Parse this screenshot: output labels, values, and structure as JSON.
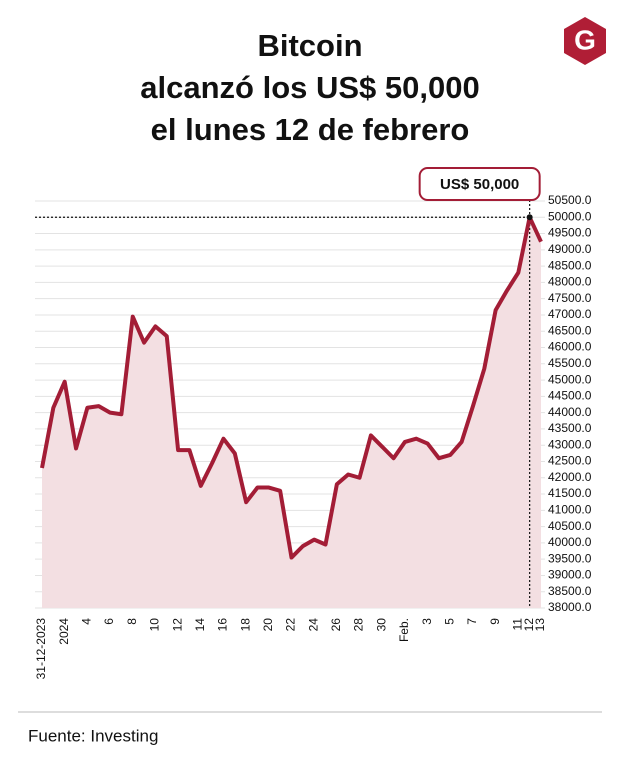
{
  "logo": "G",
  "chart_data": {
    "type": "line",
    "title": [
      "Bitcoin",
      "alcanzó los US$ 50,000",
      "el lunes 12 de febrero"
    ],
    "categories": [
      "31-12-2023",
      null,
      "2024",
      null,
      "4",
      null,
      "6",
      null,
      "8",
      null,
      "10",
      null,
      "12",
      null,
      "14",
      null,
      "16",
      null,
      "18",
      null,
      "20",
      null,
      "22",
      null,
      "24",
      null,
      "26",
      null,
      "28",
      null,
      "30",
      null,
      "Feb.",
      null,
      "3",
      null,
      "5",
      null,
      "7",
      null,
      "9",
      null,
      "11",
      "12",
      "13"
    ],
    "series": [
      {
        "name": "Bitcoin",
        "color": "#a31d36",
        "area_color": "#f3dfe2",
        "values": [
          42300,
          44150,
          44950,
          42900,
          44150,
          44200,
          44000,
          43950,
          46950,
          46150,
          46650,
          46350,
          42850,
          42850,
          41750,
          42450,
          43200,
          42750,
          41250,
          41700,
          41700,
          41600,
          39550,
          39900,
          40100,
          39950,
          41800,
          42100,
          42000,
          43300,
          42950,
          42600,
          43100,
          43200,
          43050,
          42600,
          42700,
          43100,
          44200,
          45350,
          47150,
          47750,
          48300,
          50000,
          49250
        ]
      }
    ],
    "ylim": [
      38000,
      50500
    ],
    "yticks": [
      {
        "value": 38000,
        "label": "38000.0"
      },
      {
        "value": 38500,
        "label": "38500.0"
      },
      {
        "value": 39000,
        "label": "39000.0"
      },
      {
        "value": 39500,
        "label": "39500.0"
      },
      {
        "value": 40000,
        "label": "40000.0"
      },
      {
        "value": 40500,
        "label": "40500.0"
      },
      {
        "value": 41000,
        "label": "41000.0"
      },
      {
        "value": 41500,
        "label": "41500.0"
      },
      {
        "value": 42000,
        "label": "42000.0"
      },
      {
        "value": 42500,
        "label": "42500.0"
      },
      {
        "value": 43000,
        "label": "43000.0"
      },
      {
        "value": 43500,
        "label": "43500.0"
      },
      {
        "value": 44000,
        "label": "44000.0"
      },
      {
        "value": 44500,
        "label": "44500.0"
      },
      {
        "value": 45000,
        "label": "45000.0"
      },
      {
        "value": 45500,
        "label": "45500.0"
      },
      {
        "value": 46000,
        "label": "46000.0"
      },
      {
        "value": 46500,
        "label": "46500.0"
      },
      {
        "value": 47000,
        "label": "47000.0"
      },
      {
        "value": 47500,
        "label": "47500.0"
      },
      {
        "value": 48000,
        "label": "48000.0"
      },
      {
        "value": 48500,
        "label": "48500.0"
      },
      {
        "value": 49000,
        "label": "49000.0"
      },
      {
        "value": 49500,
        "label": "49500.0"
      },
      {
        "value": 50000,
        "label": "50000.0"
      },
      {
        "value": 50500,
        "label": "50500.0"
      }
    ],
    "grid": true,
    "annotation": {
      "value": 50000,
      "label": "US$ 50,000"
    },
    "source": "Fuente: Investing"
  }
}
